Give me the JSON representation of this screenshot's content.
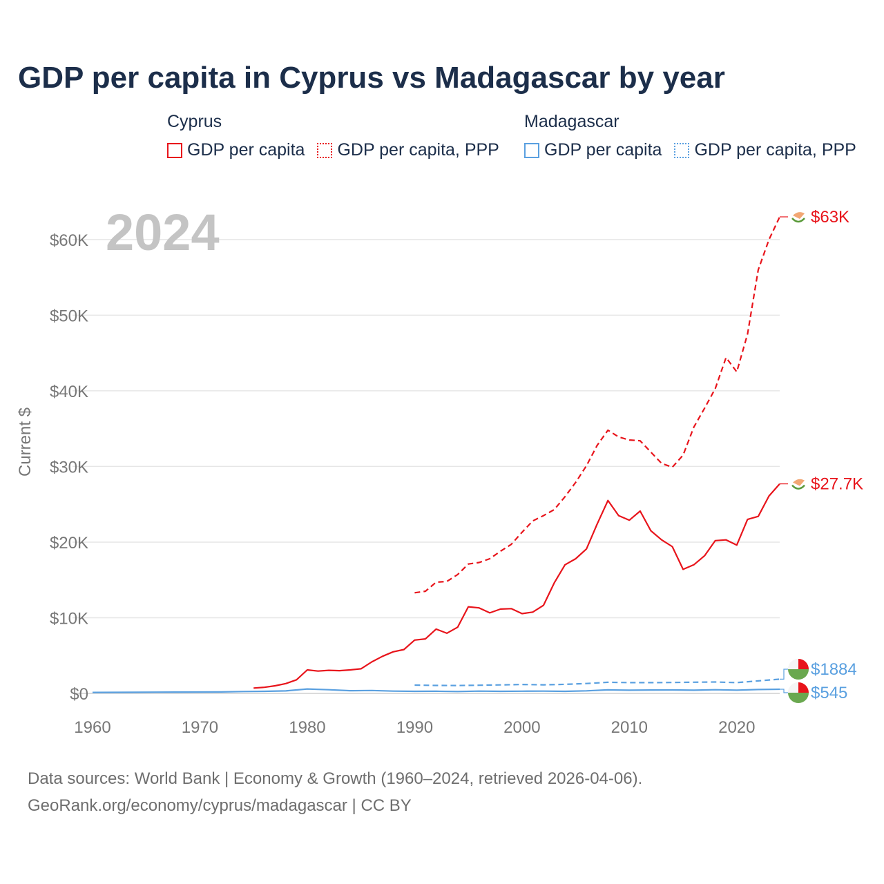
{
  "chart_data": {
    "type": "line",
    "title": "GDP per capita in Cyprus vs Madagascar by year",
    "ylabel": "Current $",
    "xlabel": "",
    "year_label": "2024",
    "xlim": [
      1960,
      2024
    ],
    "ylim": [
      0,
      63000
    ],
    "x_ticks": [
      1960,
      1970,
      1980,
      1990,
      2000,
      2010,
      2020
    ],
    "y_ticks": [
      {
        "value": 0,
        "label": "$0"
      },
      {
        "value": 10000,
        "label": "$10K"
      },
      {
        "value": 20000,
        "label": "$20K"
      },
      {
        "value": 30000,
        "label": "$30K"
      },
      {
        "value": 40000,
        "label": "$40K"
      },
      {
        "value": 50000,
        "label": "$50K"
      },
      {
        "value": 60000,
        "label": "$60K"
      }
    ],
    "legend": [
      {
        "group": "Cyprus",
        "items": [
          "GDP per capita",
          "GDP per capita, PPP"
        ],
        "color": "#e8141b"
      },
      {
        "group": "Madagascar",
        "items": [
          "GDP per capita",
          "GDP per capita, PPP"
        ],
        "color": "#5aa0e0"
      }
    ],
    "series": [
      {
        "name": "Cyprus GDP per capita",
        "country": "Cyprus",
        "color": "#e8141b",
        "dashed": false,
        "end_label": "$27.7K",
        "x": [
          1975,
          1976,
          1977,
          1978,
          1979,
          1980,
          1981,
          1982,
          1983,
          1984,
          1985,
          1986,
          1987,
          1988,
          1989,
          1990,
          1991,
          1992,
          1993,
          1994,
          1995,
          1996,
          1997,
          1998,
          1999,
          2000,
          2001,
          2002,
          2003,
          2004,
          2005,
          2006,
          2007,
          2008,
          2009,
          2010,
          2011,
          2012,
          2013,
          2014,
          2015,
          2016,
          2017,
          2018,
          2019,
          2020,
          2021,
          2022,
          2023,
          2024
        ],
        "values": [
          700,
          800,
          1000,
          1300,
          1800,
          3100,
          2950,
          3050,
          3000,
          3100,
          3250,
          4150,
          4900,
          5500,
          5800,
          7050,
          7200,
          8500,
          7950,
          8750,
          11450,
          11300,
          10650,
          11150,
          11200,
          10550,
          10750,
          11650,
          14600,
          17000,
          17800,
          19100,
          22400,
          25500,
          23500,
          22900,
          24100,
          21500,
          20300,
          19400,
          16400,
          17000,
          18200,
          20200,
          20300,
          19600,
          23000,
          23400,
          26100,
          27700
        ]
      },
      {
        "name": "Cyprus GDP per capita, PPP",
        "country": "Cyprus",
        "color": "#e8141b",
        "dashed": true,
        "end_label": "$63K",
        "x": [
          1990,
          1991,
          1992,
          1993,
          1994,
          1995,
          1996,
          1997,
          1998,
          1999,
          2000,
          2001,
          2002,
          2003,
          2004,
          2005,
          2006,
          2007,
          2008,
          2009,
          2010,
          2011,
          2012,
          2013,
          2014,
          2015,
          2016,
          2017,
          2018,
          2019,
          2020,
          2021,
          2022,
          2023,
          2024
        ],
        "values": [
          13300,
          13500,
          14700,
          14800,
          15700,
          17100,
          17300,
          17800,
          18800,
          19700,
          21300,
          22800,
          23500,
          24300,
          26000,
          27900,
          30100,
          32800,
          34800,
          33900,
          33500,
          33400,
          31900,
          30400,
          29900,
          31500,
          35200,
          37700,
          40300,
          44400,
          42500,
          47500,
          56000,
          60000,
          63000
        ]
      },
      {
        "name": "Madagascar GDP per capita",
        "country": "Madagascar",
        "color": "#5aa0e0",
        "dashed": false,
        "end_label": "$545",
        "x": [
          1960,
          1962,
          1964,
          1966,
          1968,
          1970,
          1972,
          1974,
          1976,
          1978,
          1980,
          1982,
          1984,
          1986,
          1988,
          1990,
          1992,
          1994,
          1996,
          1998,
          2000,
          2002,
          2004,
          2006,
          2008,
          2010,
          2012,
          2014,
          2016,
          2018,
          2020,
          2022,
          2024
        ],
        "values": [
          130,
          140,
          150,
          160,
          170,
          180,
          190,
          250,
          270,
          330,
          580,
          480,
          360,
          380,
          300,
          270,
          280,
          250,
          300,
          270,
          290,
          300,
          270,
          340,
          470,
          420,
          450,
          460,
          420,
          480,
          430,
          510,
          545
        ]
      },
      {
        "name": "Madagascar GDP per capita, PPP",
        "country": "Madagascar",
        "color": "#5aa0e0",
        "dashed": true,
        "end_label": "$1884",
        "x": [
          1990,
          1992,
          1994,
          1996,
          1998,
          2000,
          2002,
          2004,
          2006,
          2008,
          2010,
          2012,
          2014,
          2016,
          2018,
          2020,
          2022,
          2024
        ],
        "values": [
          1100,
          1050,
          1040,
          1080,
          1120,
          1180,
          1130,
          1200,
          1310,
          1470,
          1420,
          1420,
          1440,
          1480,
          1510,
          1420,
          1650,
          1884
        ]
      }
    ]
  },
  "footer": {
    "line1": "Data sources: World Bank | Economy & Growth (1960–2024, retrieved 2026-04-06).",
    "line2": "GeoRank.org/economy/cyprus/madagascar | CC BY"
  }
}
